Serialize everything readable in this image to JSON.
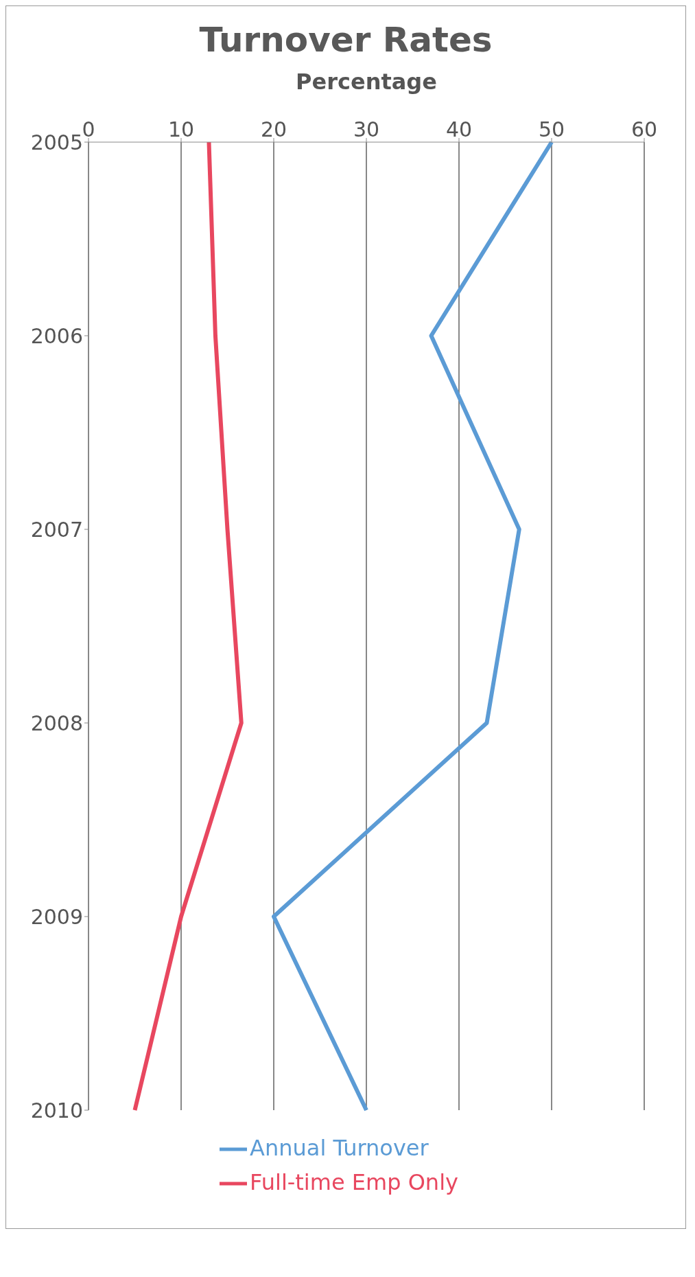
{
  "chart_data": {
    "type": "line",
    "orientation": "horizontal",
    "title": "Turnover Rates",
    "xlabel": "Percentage",
    "categories": [
      "2005",
      "2006",
      "2007",
      "2008",
      "2009",
      "2010"
    ],
    "series": [
      {
        "name": "Annual Turnover",
        "color": "#5b9bd5",
        "values": [
          50,
          37,
          46.5,
          43,
          20,
          30
        ]
      },
      {
        "name": "Full-time Emp Only",
        "color": "#e8475f",
        "values": [
          13,
          13.7,
          15,
          16.5,
          10,
          5
        ]
      }
    ],
    "xlim": [
      0,
      60
    ],
    "xticks": [
      0,
      10,
      20,
      30,
      40,
      50,
      60
    ],
    "grid": "x",
    "legend": "bottom",
    "marker": "none"
  }
}
